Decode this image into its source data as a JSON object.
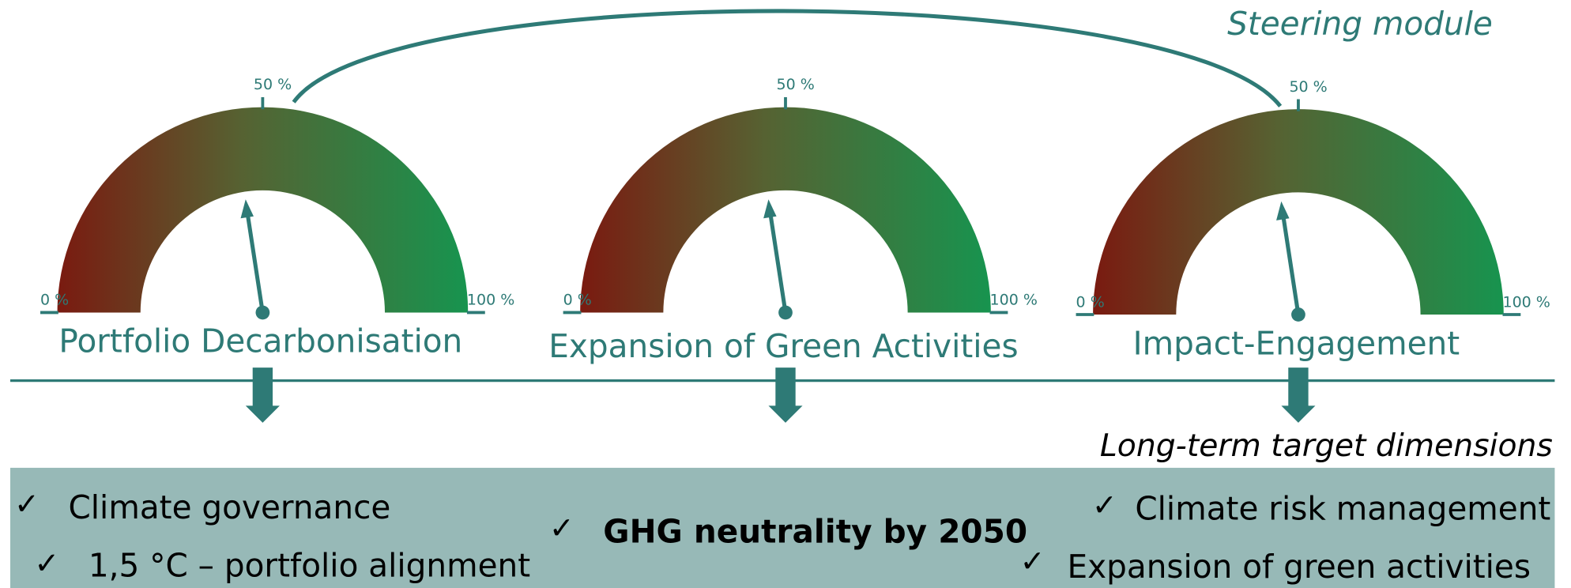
{
  "title": "Steering module",
  "gauges": [
    {
      "name": "Portfolio Decarbonisation",
      "min_label": "0 %",
      "mid_label": "50 %",
      "max_label": "100 %"
    },
    {
      "name": "Expansion of Green Activities",
      "min_label": "0 %",
      "mid_label": "50 %",
      "max_label": "100 %"
    },
    {
      "name": "Impact-Engagement",
      "min_label": "0 %",
      "mid_label": "50 %",
      "max_label": "100 %"
    }
  ],
  "subtitle": "Long-term target dimensions",
  "check_mark": "✓",
  "targets": {
    "left": [
      "Climate governance",
      "1,5 °C – portfolio alignment"
    ],
    "center": "GHG neutrality by 2050",
    "right": [
      "Climate risk management",
      "Expansion of green activities"
    ]
  }
}
